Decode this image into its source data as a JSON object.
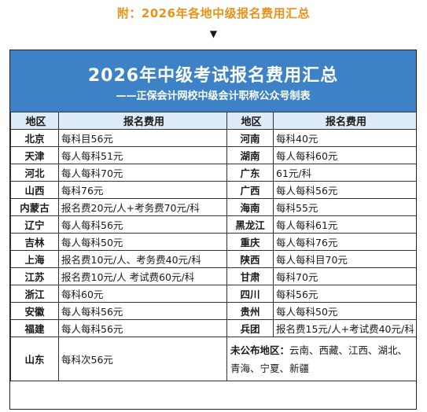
{
  "top_title": "附：2026年各地中级报名费用汇总",
  "arrow": "▼",
  "banner": {
    "title": "2026年中级考试报名费用汇总",
    "subtitle": "——正保会计网校中级会计职称公众号制表"
  },
  "table": {
    "headers": [
      "地区",
      "报名费用",
      "地区",
      "报名费用"
    ],
    "rows": [
      {
        "r1": "北京",
        "f1": "每科目56元",
        "r2": "河南",
        "f2": "每科40元"
      },
      {
        "r1": "天津",
        "f1": "每人每科51元",
        "r2": "湖南",
        "f2": "每人每科60元"
      },
      {
        "r1": "河北",
        "f1": "每人每科70元",
        "r2": "广东",
        "f2": "61元/科"
      },
      {
        "r1": "山西",
        "f1": "每科76元",
        "r2": "广西",
        "f2": "每人每科56元"
      },
      {
        "r1": "内蒙古",
        "f1": "报名费20元/人+考务费70元/科",
        "r2": "海南",
        "f2": "每科55元"
      },
      {
        "r1": "辽宁",
        "f1": "每人每科56元",
        "r2": "黑龙江",
        "f2": "每人每科61元"
      },
      {
        "r1": "吉林",
        "f1": "每人每科50元",
        "r2": "重庆",
        "f2": "每人每科76元"
      },
      {
        "r1": "上海",
        "f1": "报名费10元/人、考务费40元/科",
        "r2": "陕西",
        "f2": "每人每科目70元"
      },
      {
        "r1": "江苏",
        "f1": "报名费10元/人 考试费60元/科",
        "r2": "甘肃",
        "f2": "每科70元"
      },
      {
        "r1": "浙江",
        "f1": "每科60元",
        "r2": "四川",
        "f2": "每科56元"
      },
      {
        "r1": "安徽",
        "f1": "每人每科56元",
        "r2": "贵州",
        "f2": "每人每科50元"
      },
      {
        "r1": "福建",
        "f1": "每人每科56元",
        "r2": "兵团",
        "f2": "报名费15元/人+考试费40元/科"
      }
    ],
    "last_row": {
      "region": "山东",
      "fee": "每科次56元",
      "note_label": "未公布地区：",
      "note_text": "云南、西藏、江西、湖北、青海、宁夏、新疆"
    }
  }
}
